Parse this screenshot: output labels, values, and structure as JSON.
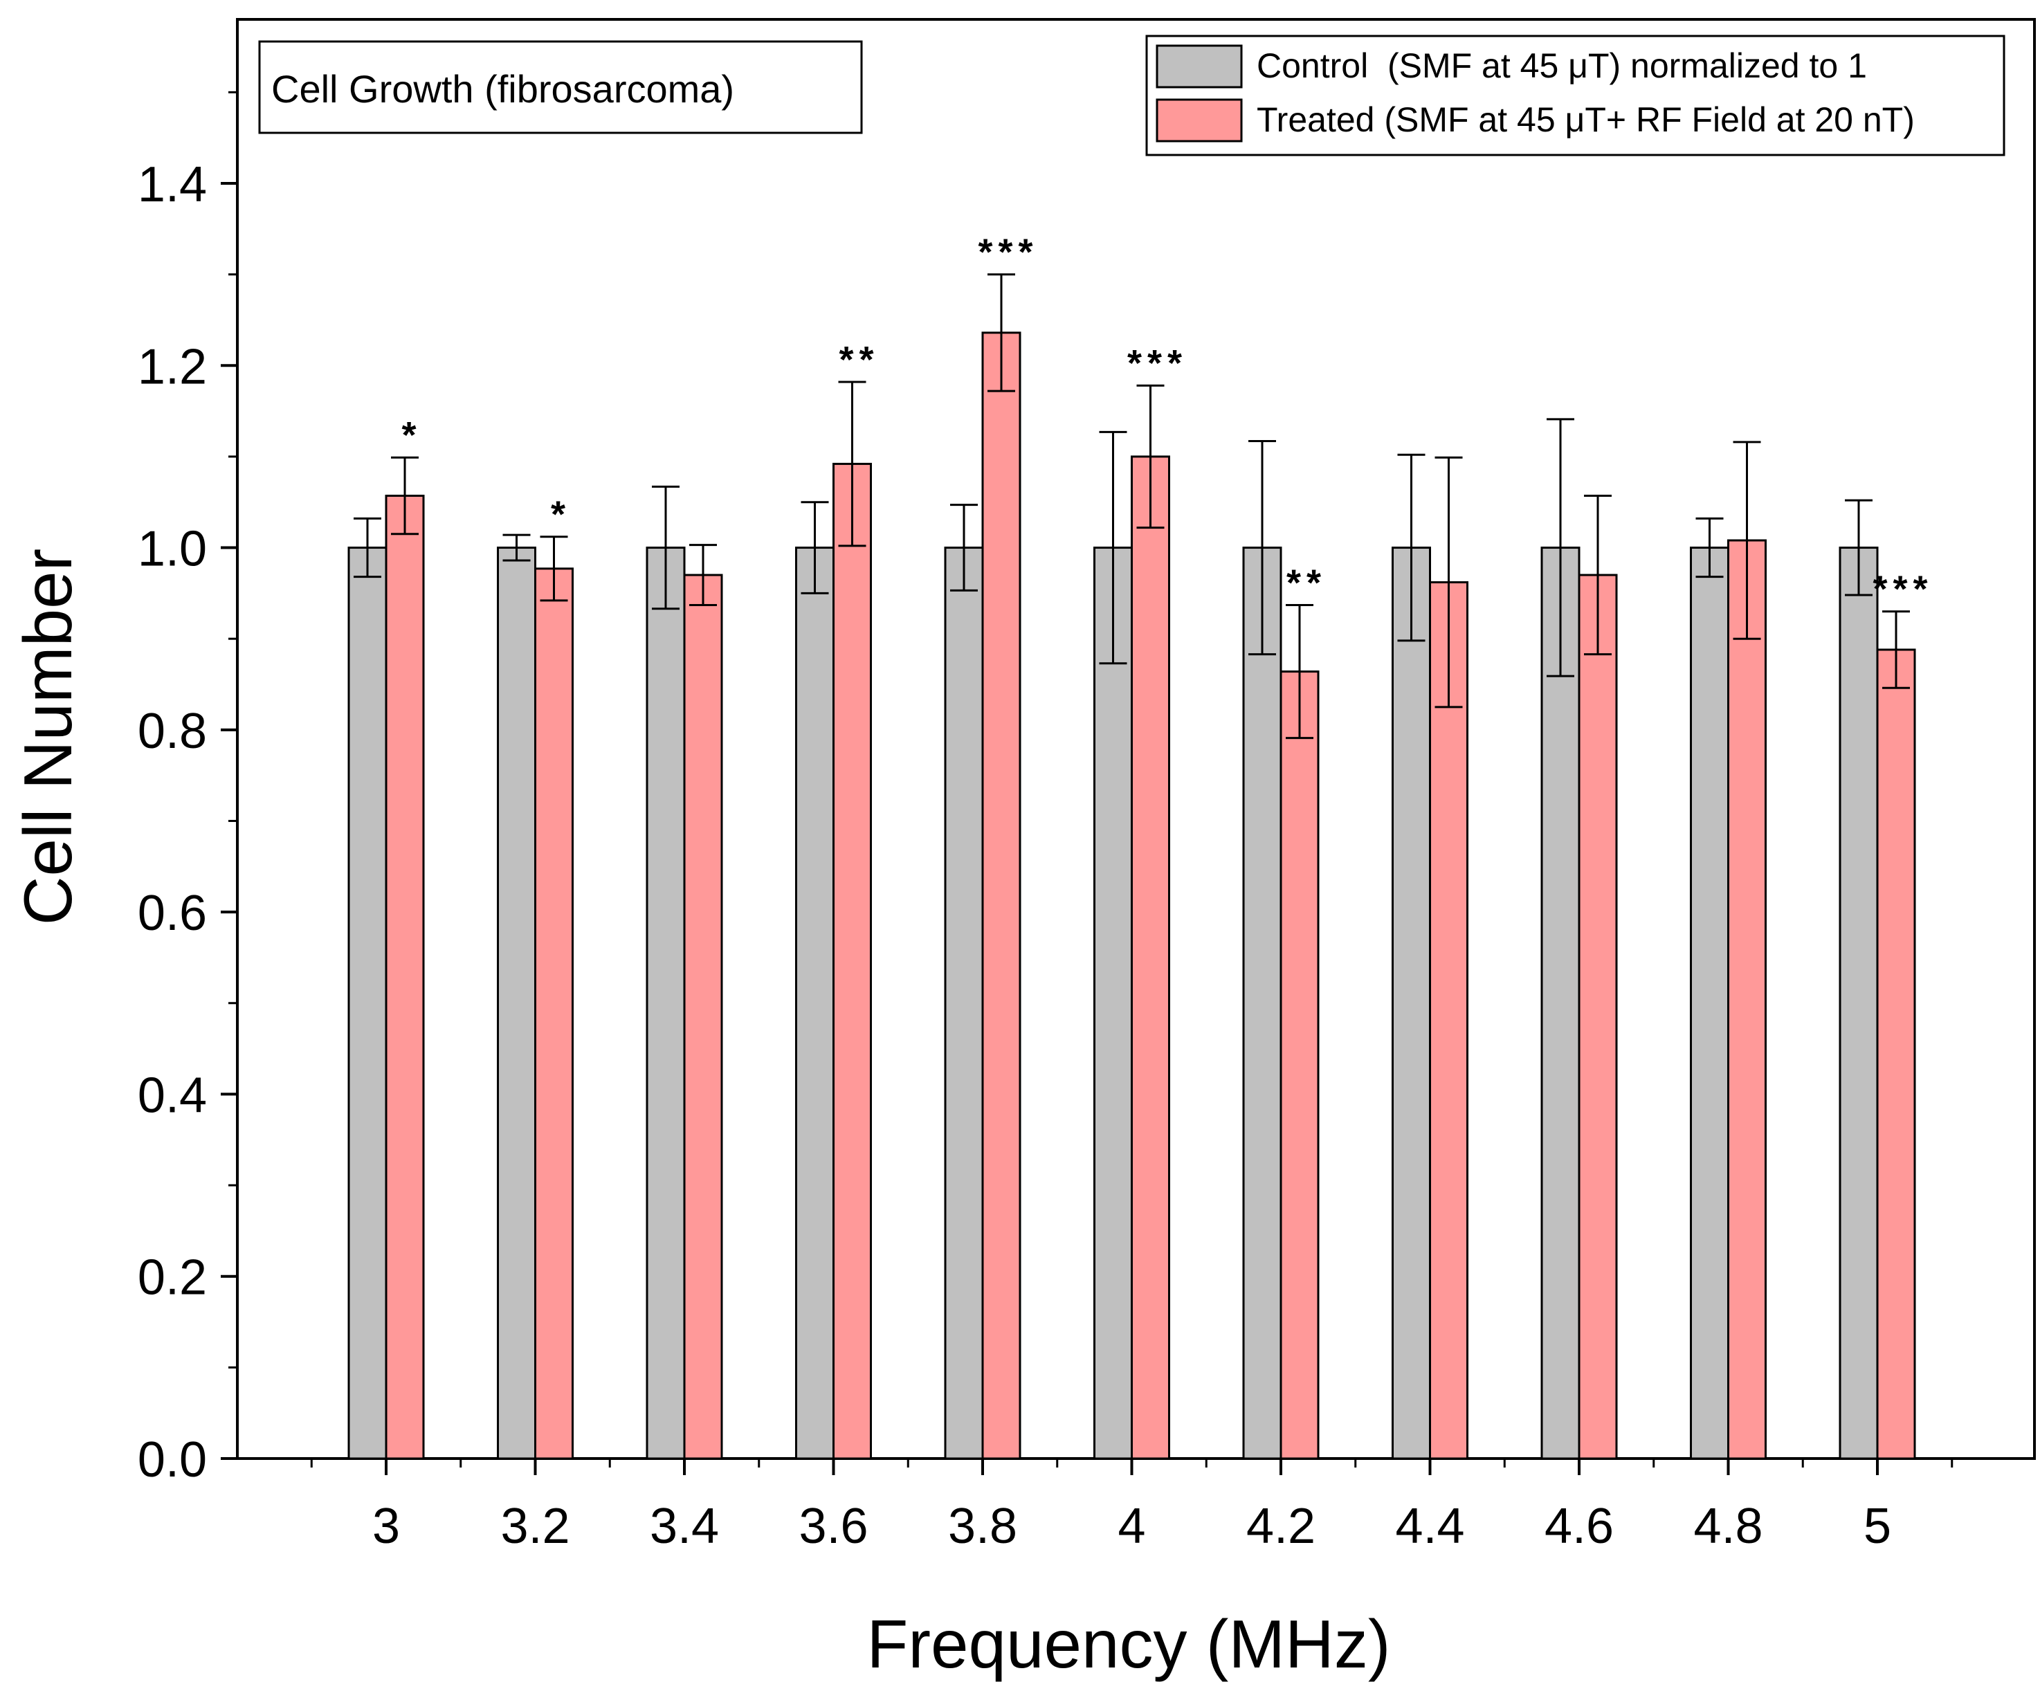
{
  "chart_data": {
    "type": "bar",
    "title_box": "Cell Growth (fibrosarcoma)",
    "xlabel": "Frequency (MHz)",
    "ylabel": "Cell Number",
    "categories": [
      "3",
      "3.2",
      "3.4",
      "3.6",
      "3.8",
      "4",
      "4.2",
      "4.4",
      "4.6",
      "4.8",
      "5"
    ],
    "ylim": [
      0,
      1.58
    ],
    "y_ticks": [
      "0.0",
      "0.2",
      "0.4",
      "0.6",
      "0.8",
      "1.0",
      "1.2",
      "1.4"
    ],
    "y_tick_values": [
      0,
      0.2,
      0.4,
      0.6,
      0.8,
      1.0,
      1.2,
      1.4
    ],
    "grid": false,
    "legend_position": "top-right",
    "series": [
      {
        "name": "Control  (SMF at 45 μT) normalized to 1",
        "color": "#c0c0c0",
        "values": [
          1.0,
          1.0,
          1.0,
          1.0,
          1.0,
          1.0,
          1.0,
          1.0,
          1.0,
          1.0,
          1.0
        ],
        "errors": [
          0.032,
          0.014,
          0.067,
          0.05,
          0.047,
          0.127,
          0.117,
          0.102,
          0.141,
          0.032,
          0.052
        ]
      },
      {
        "name": "Treated (SMF at 45 μT+ RF Field at 20 nT)",
        "color": "#ff9999",
        "values": [
          1.057,
          0.977,
          0.97,
          1.092,
          1.236,
          1.1,
          0.864,
          0.962,
          0.97,
          1.008,
          0.888
        ],
        "errors": [
          0.042,
          0.035,
          0.033,
          0.09,
          0.064,
          0.078,
          0.073,
          0.137,
          0.087,
          0.108,
          0.042
        ],
        "significance": [
          "*",
          "*",
          "",
          "**",
          "***",
          "***",
          "**",
          "",
          "",
          "",
          "***"
        ]
      }
    ]
  }
}
